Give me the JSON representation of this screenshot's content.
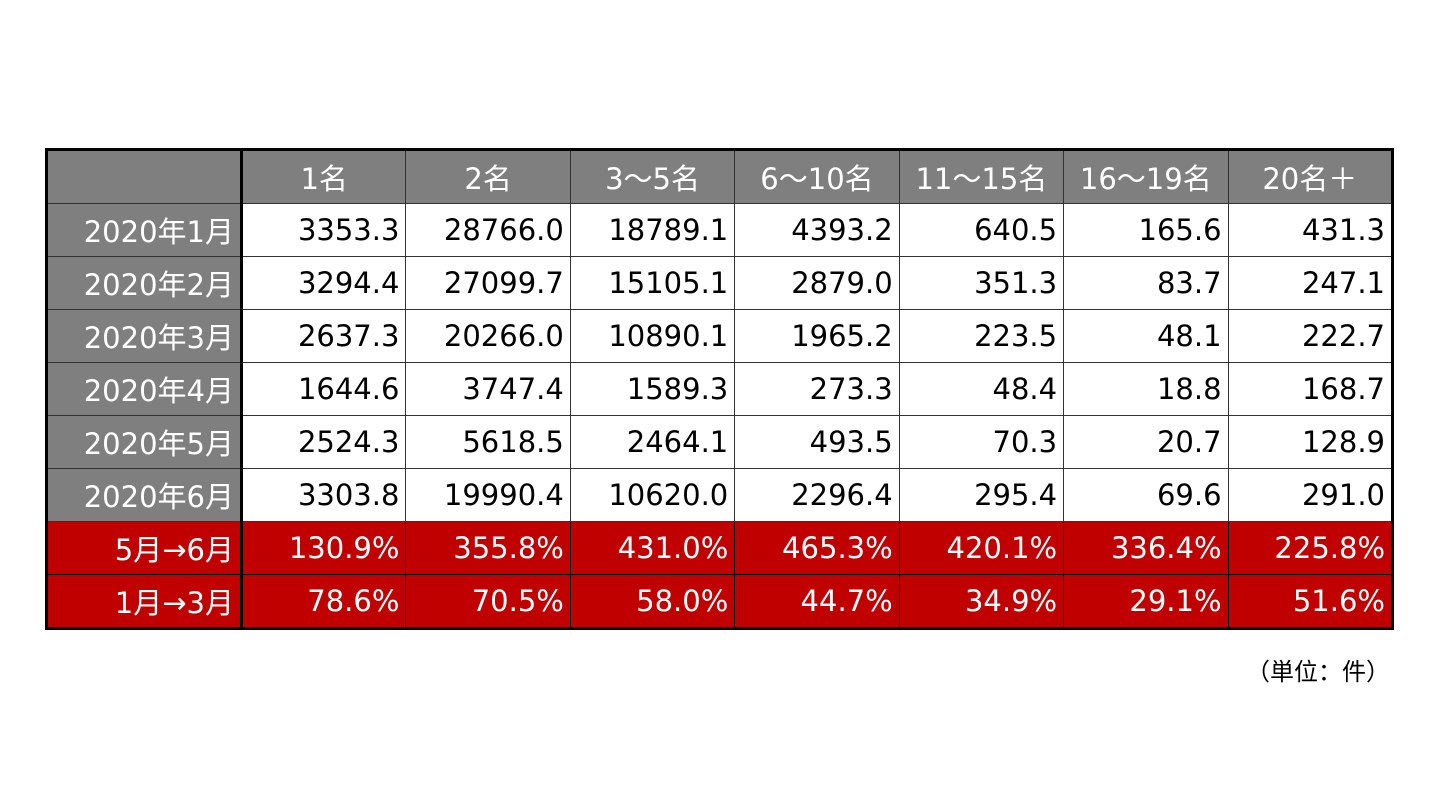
{
  "table": {
    "header": [
      "1名",
      "2名",
      "3～5名",
      "6～10名",
      "11～15名",
      "16～19名",
      "20名＋"
    ],
    "rows": [
      {
        "label": "2020年1月",
        "cells": [
          "3353.3",
          "28766.0",
          "18789.1",
          "4393.2",
          "640.5",
          "165.6",
          "431.3"
        ]
      },
      {
        "label": "2020年2月",
        "cells": [
          "3294.4",
          "27099.7",
          "15105.1",
          "2879.0",
          "351.3",
          "83.7",
          "247.1"
        ]
      },
      {
        "label": "2020年3月",
        "cells": [
          "2637.3",
          "20266.0",
          "10890.1",
          "1965.2",
          "223.5",
          "48.1",
          "222.7"
        ]
      },
      {
        "label": "2020年4月",
        "cells": [
          "1644.6",
          "3747.4",
          "1589.3",
          "273.3",
          "48.4",
          "18.8",
          "168.7"
        ]
      },
      {
        "label": "2020年5月",
        "cells": [
          "2524.3",
          "5618.5",
          "2464.1",
          "493.5",
          "70.3",
          "20.7",
          "128.9"
        ]
      },
      {
        "label": "2020年6月",
        "cells": [
          "3303.8",
          "19990.4",
          "10620.0",
          "2296.4",
          "295.4",
          "69.6",
          "291.0"
        ]
      }
    ],
    "change_rows": [
      {
        "label": "5月→6月",
        "cells": [
          "130.9%",
          "355.8%",
          "431.0%",
          "465.3%",
          "420.1%",
          "336.4%",
          "225.8%"
        ]
      },
      {
        "label": "1月→3月",
        "cells": [
          "78.6%",
          "70.5%",
          "58.0%",
          "44.7%",
          "34.9%",
          "29.1%",
          "51.6%"
        ]
      }
    ],
    "note": "（単位：件）"
  }
}
